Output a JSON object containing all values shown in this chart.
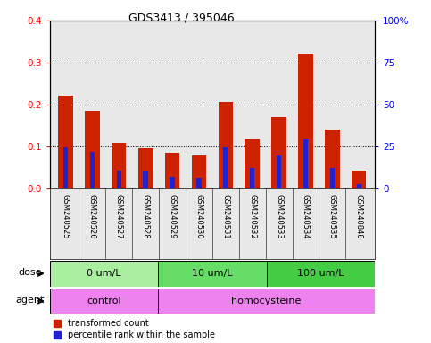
{
  "title": "GDS3413 / 395046",
  "samples": [
    "GSM240525",
    "GSM240526",
    "GSM240527",
    "GSM240528",
    "GSM240529",
    "GSM240530",
    "GSM240531",
    "GSM240532",
    "GSM240533",
    "GSM240534",
    "GSM240535",
    "GSM240848"
  ],
  "red_values": [
    0.222,
    0.185,
    0.108,
    0.097,
    0.085,
    0.08,
    0.207,
    0.118,
    0.17,
    0.322,
    0.14,
    0.042
  ],
  "blue_percentile": [
    24.5,
    22.0,
    10.5,
    10.0,
    6.8,
    6.3,
    24.5,
    12.5,
    20.0,
    29.5,
    12.5,
    2.5
  ],
  "dose_groups": [
    {
      "label": "0 um/L",
      "start": 0,
      "end": 4,
      "color": "#AAEEA0"
    },
    {
      "label": "10 um/L",
      "start": 4,
      "end": 8,
      "color": "#66DD66"
    },
    {
      "label": "100 um/L",
      "start": 8,
      "end": 12,
      "color": "#44CC44"
    }
  ],
  "agent_groups": [
    {
      "label": "control",
      "start": 0,
      "end": 4,
      "color": "#EE82EE"
    },
    {
      "label": "homocysteine",
      "start": 4,
      "end": 12,
      "color": "#EE82EE"
    }
  ],
  "ylim_left": [
    0,
    0.4
  ],
  "ylim_right": [
    0,
    100
  ],
  "yticks_left": [
    0,
    0.1,
    0.2,
    0.3,
    0.4
  ],
  "yticks_right": [
    0,
    25,
    50,
    75,
    100
  ],
  "red_color": "#CC2200",
  "blue_color": "#2222CC",
  "bar_width": 0.55,
  "blue_bar_width": 0.18,
  "bg_color": "#E8E8E8",
  "plot_bg": "#FFFFFF",
  "legend_red": "transformed count",
  "legend_blue": "percentile rank within the sample"
}
